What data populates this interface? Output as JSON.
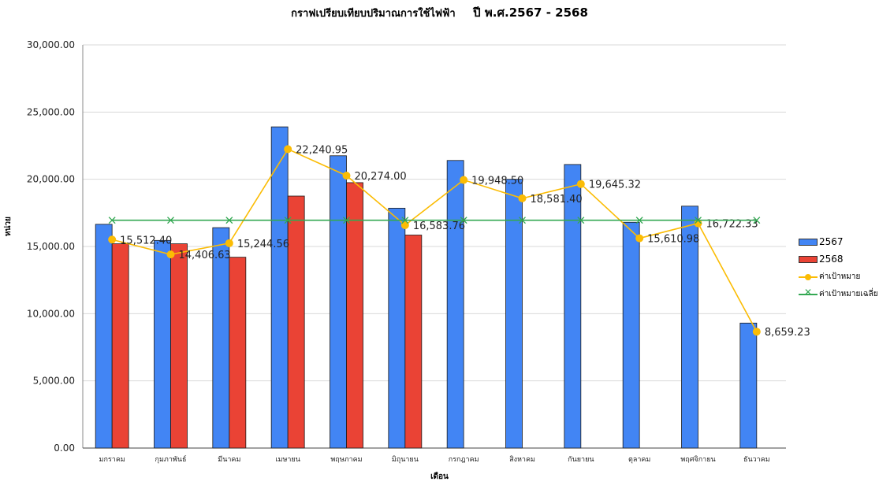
{
  "chart_data": {
    "type": "bar",
    "title": "กราฟเปรียบเทียบปริมาณการใช้ไฟฟ้า",
    "subtitle": "ปี พ.ศ.2567 - 2568",
    "xlabel": "เดือน",
    "ylabel": "หน่วย",
    "ylim": [
      0,
      30000
    ],
    "yticks": [
      "0.00",
      "5,000.00",
      "10,000.00",
      "15,000.00",
      "20,000.00",
      "25,000.00",
      "30,000.00"
    ],
    "grid": true,
    "legend_position": "right",
    "categories": [
      "มกราคม",
      "กุมภาพันธ์",
      "มีนาคม",
      "เมษายน",
      "พฤษภาคม",
      "มิถุนายน",
      "กรกฎาคม",
      "สิงหาคม",
      "กันยายน",
      "ตุลาคม",
      "พฤศจิกายน",
      "ธันวาคม"
    ],
    "series": [
      {
        "name": "2567",
        "kind": "bar",
        "color": "#4285f4",
        "values": [
          16650,
          15450,
          16400,
          23900,
          21750,
          17850,
          21400,
          20000,
          21100,
          16800,
          18000,
          9300
        ]
      },
      {
        "name": "2568",
        "kind": "bar",
        "color": "#ea4335",
        "values": [
          15200,
          15200,
          14200,
          18750,
          19750,
          15850,
          null,
          null,
          null,
          null,
          null,
          null
        ]
      },
      {
        "name": "ค่าเป้าหมาย",
        "kind": "line",
        "marker": "circle",
        "color": "#fbbc04",
        "values": [
          15512.4,
          14406.63,
          15244.56,
          22240.95,
          20274.0,
          16583.76,
          19948.5,
          18581.4,
          19645.32,
          15610.98,
          16722.33,
          8659.23
        ],
        "labels": [
          "15,512.40",
          "14,406.63",
          "15,244.56",
          "22,240.95",
          "20,274.00",
          "16,583.76",
          "19,948.50",
          "18,581.40",
          "19,645.32",
          "15,610.98",
          "16,722.33",
          "8,659.23"
        ]
      },
      {
        "name": "ค่าเป้าหมายเฉลี่ย",
        "kind": "line",
        "marker": "x",
        "color": "#34a853",
        "values": [
          16952,
          16952,
          16952,
          16952,
          16952,
          16952,
          16952,
          16952,
          16952,
          16952,
          16952,
          16952
        ]
      }
    ]
  }
}
